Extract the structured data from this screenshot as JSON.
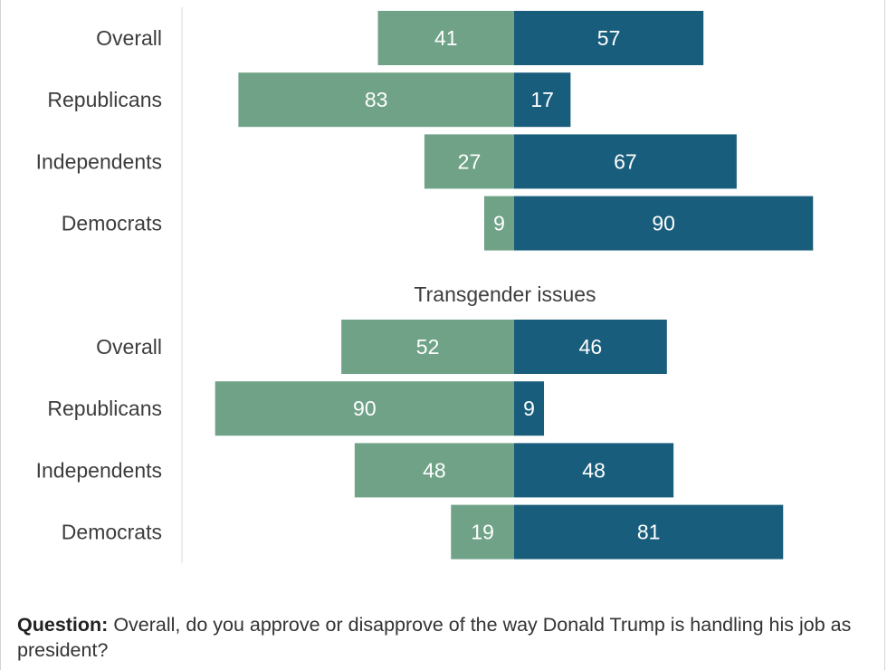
{
  "colors": {
    "approve": "#6fa287",
    "disapprove": "#195d7c",
    "axis": "#d9d9d9"
  },
  "chart_data": [
    {
      "type": "bar",
      "orientation": "horizontal-diverging",
      "title": "",
      "categories": [
        "Overall",
        "Republicans",
        "Independents",
        "Democrats"
      ],
      "series": [
        {
          "values": [
            41,
            83,
            27,
            9
          ]
        },
        {
          "values": [
            57,
            17,
            67,
            90
          ]
        }
      ]
    },
    {
      "type": "bar",
      "orientation": "horizontal-diverging",
      "title": "Transgender issues",
      "categories": [
        "Overall",
        "Republicans",
        "Independents",
        "Democrats"
      ],
      "series": [
        {
          "values": [
            52,
            90,
            48,
            19
          ]
        },
        {
          "values": [
            46,
            9,
            48,
            81
          ]
        }
      ]
    }
  ],
  "footer": {
    "question_label": "Question:",
    "question_text": " Overall, do you approve or disapprove of the way Donald Trump is handling his job as president?"
  }
}
